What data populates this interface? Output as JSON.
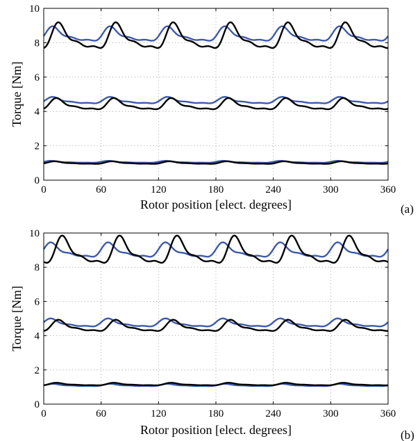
{
  "colors": {
    "measured": "#000000",
    "simulated": "#3d5aa8"
  },
  "chart_data": [
    {
      "type": "line",
      "panel_label": "(a)",
      "xlabel": "Rotor position [elect. degrees]",
      "ylabel": "Torque [Nm]",
      "xlim": [
        0,
        360
      ],
      "ylim": [
        0,
        10
      ],
      "xticks": [
        "0",
        "60",
        "120",
        "180",
        "240",
        "300",
        "360"
      ],
      "yticks": [
        "0",
        "2",
        "4",
        "6",
        "8",
        "10"
      ],
      "grid": true,
      "ripple_period_deg": 60,
      "series": [
        {
          "color": "simulated",
          "level": 8.4,
          "amp": 0.45,
          "phase": 12
        },
        {
          "color": "measured",
          "level": 8.2,
          "amp": 0.8,
          "phase": 18
        },
        {
          "color": "simulated",
          "level": 4.6,
          "amp": 0.2,
          "phase": 12
        },
        {
          "color": "measured",
          "level": 4.35,
          "amp": 0.35,
          "phase": 16
        },
        {
          "color": "simulated",
          "level": 1.05,
          "amp": 0.06,
          "phase": 10
        },
        {
          "color": "measured",
          "level": 1.0,
          "amp": 0.08,
          "phase": 14
        }
      ]
    },
    {
      "type": "line",
      "panel_label": "(b)",
      "xlabel": "Rotor position [elect. degrees]",
      "ylabel": "Torque [Nm]",
      "xlim": [
        0,
        360
      ],
      "ylim": [
        0,
        10
      ],
      "xticks": [
        "0",
        "60",
        "120",
        "180",
        "240",
        "300",
        "360"
      ],
      "yticks": [
        "0",
        "2",
        "4",
        "6",
        "8",
        "10"
      ],
      "grid": true,
      "ripple_period_deg": 60,
      "series": [
        {
          "color": "simulated",
          "level": 8.9,
          "amp": 0.45,
          "phase": 10
        },
        {
          "color": "measured",
          "level": 8.8,
          "amp": 0.85,
          "phase": 22
        },
        {
          "color": "simulated",
          "level": 4.7,
          "amp": 0.25,
          "phase": 10
        },
        {
          "color": "measured",
          "level": 4.5,
          "amp": 0.35,
          "phase": 18
        },
        {
          "color": "simulated",
          "level": 1.1,
          "amp": 0.07,
          "phase": 12
        },
        {
          "color": "measured",
          "level": 1.15,
          "amp": 0.08,
          "phase": 16
        }
      ]
    }
  ]
}
